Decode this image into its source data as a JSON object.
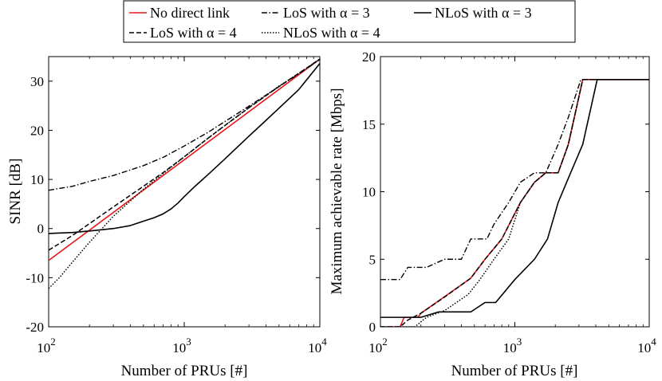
{
  "legend": {
    "placement": "top-center",
    "entries": [
      {
        "label": "No direct link",
        "color": "#e8151b",
        "dash": "solid"
      },
      {
        "label": "LoS with α = 3",
        "color": "#000000",
        "dash": "dashdot"
      },
      {
        "label": "NLoS with α = 3",
        "color": "#000000",
        "dash": "solid"
      },
      {
        "label": "LoS with α = 4",
        "color": "#000000",
        "dash": "dashed"
      },
      {
        "label": "NLoS with α = 4",
        "color": "#000000",
        "dash": "dotted"
      }
    ]
  },
  "chart_data": [
    {
      "type": "line",
      "xscale": "log",
      "xlim": [
        100,
        10000
      ],
      "ylim": [
        -20,
        35
      ],
      "xticks": [
        "10^2",
        "10^3",
        "10^4"
      ],
      "yticks": [
        "-20",
        "-10",
        "0",
        "10",
        "20",
        "30"
      ],
      "xlabel": "Number of PRUs [#]",
      "ylabel": "SINR [dB]",
      "grid": false,
      "series": [
        {
          "name": "No direct link",
          "color": "#e8151b",
          "dash": "solid",
          "x": [
            100,
            10000
          ],
          "y": [
            -6.5,
            34.5
          ]
        },
        {
          "name": "LoS with α = 3",
          "color": "#000000",
          "dash": "dashdot",
          "x": [
            100,
            150,
            200,
            300,
            500,
            700,
            1000,
            1500,
            2000,
            3000,
            5000,
            7000,
            10000
          ],
          "y": [
            7.8,
            8.6,
            9.6,
            10.8,
            12.8,
            14.5,
            16.8,
            19.6,
            21.8,
            24.9,
            28.9,
            31.5,
            34.4
          ]
        },
        {
          "name": "NLoS with α = 3",
          "color": "#000000",
          "dash": "solid",
          "x": [
            100,
            150,
            200,
            300,
            400,
            500,
            600,
            700,
            800,
            900,
            1000,
            1200,
            1500,
            2000,
            3000,
            4000,
            5000,
            7000,
            10000
          ],
          "y": [
            -1.0,
            -0.8,
            -0.5,
            0.0,
            0.6,
            1.5,
            2.2,
            3.0,
            4.0,
            5.2,
            6.5,
            8.6,
            11.0,
            14.2,
            18.8,
            22.0,
            24.5,
            28.3,
            33.6
          ]
        },
        {
          "name": "LoS with α = 4",
          "color": "#000000",
          "dash": "dashed",
          "x": [
            100,
            150,
            200,
            300,
            500,
            700,
            1000,
            1500,
            2000,
            3000,
            5000,
            7000,
            10000
          ],
          "y": [
            -4.4,
            -1.4,
            1.0,
            4.4,
            8.6,
            11.4,
            14.6,
            18.4,
            21.0,
            24.6,
            28.9,
            31.6,
            34.5
          ]
        },
        {
          "name": "NLoS with α = 4",
          "color": "#000000",
          "dash": "dotted",
          "x": [
            100,
            120,
            150,
            200,
            300,
            500,
            700,
            1000,
            1500,
            2000,
            3000,
            5000,
            7000,
            10000
          ],
          "y": [
            -12.2,
            -10.0,
            -6.8,
            -2.8,
            2.5,
            8.0,
            11.2,
            14.6,
            18.4,
            21.0,
            24.6,
            29.0,
            31.6,
            34.5
          ]
        }
      ]
    },
    {
      "type": "line",
      "xscale": "log",
      "xlim": [
        100,
        10000
      ],
      "ylim": [
        0,
        20
      ],
      "xticks": [
        "10^2",
        "10^3",
        "10^4"
      ],
      "yticks": [
        "0",
        "5",
        "10",
        "15",
        "20"
      ],
      "xlabel": "Number of PRUs [#]",
      "ylabel": "Maximum achievable rate [Mbps]",
      "grid": false,
      "series": [
        {
          "name": "No direct link",
          "color": "#e8151b",
          "dash": "solid",
          "x": [
            100,
            140,
            150,
            190,
            200,
            260,
            350,
            470,
            600,
            800,
            1100,
            1400,
            1700,
            2100,
            2500,
            3200,
            10000
          ],
          "y": [
            0,
            0,
            0.7,
            0.7,
            1.0,
            1.8,
            2.7,
            3.6,
            5.0,
            6.5,
            9.2,
            10.7,
            11.4,
            11.4,
            13.5,
            18.3,
            18.3
          ]
        },
        {
          "name": "LoS with α = 3",
          "color": "#000000",
          "dash": "dashdot",
          "x": [
            100,
            140,
            160,
            220,
            300,
            400,
            470,
            620,
            700,
            900,
            1100,
            1400,
            1700,
            2100,
            2500,
            3100,
            10000
          ],
          "y": [
            3.5,
            3.5,
            4.4,
            4.4,
            5.0,
            5.0,
            6.5,
            6.5,
            7.6,
            9.2,
            10.7,
            11.4,
            11.4,
            13.5,
            15.5,
            18.3,
            18.3
          ]
        },
        {
          "name": "NLoS with α = 3",
          "color": "#000000",
          "dash": "solid",
          "x": [
            100,
            200,
            270,
            470,
            600,
            720,
            1000,
            1400,
            1750,
            2100,
            2600,
            3200,
            4100,
            10000
          ],
          "y": [
            0.7,
            0.7,
            1.1,
            1.1,
            1.8,
            1.8,
            3.5,
            5.0,
            6.5,
            9.2,
            11.4,
            13.5,
            18.3,
            18.3
          ]
        },
        {
          "name": "LoS with α = 4",
          "color": "#000000",
          "dash": "dashed",
          "x": [
            100,
            140,
            160,
            200,
            300,
            470,
            600,
            800,
            1100,
            1400,
            1700,
            2100,
            2500,
            3200,
            10000
          ],
          "y": [
            0,
            0,
            0.5,
            1.0,
            2.2,
            3.6,
            5.0,
            6.5,
            9.2,
            10.7,
            11.4,
            11.4,
            13.5,
            18.3,
            18.3
          ]
        },
        {
          "name": "NLoS with α = 4",
          "color": "#000000",
          "dash": "dotted",
          "x": [
            100,
            180,
            220,
            300,
            450,
            550,
            700,
            900,
            1100,
            1400,
            1700,
            2100,
            2500,
            3200,
            10000
          ],
          "y": [
            0,
            0,
            0.7,
            1.2,
            2.4,
            3.5,
            5.0,
            6.5,
            9.2,
            10.7,
            11.4,
            11.4,
            13.5,
            18.3,
            18.3
          ]
        }
      ]
    }
  ]
}
